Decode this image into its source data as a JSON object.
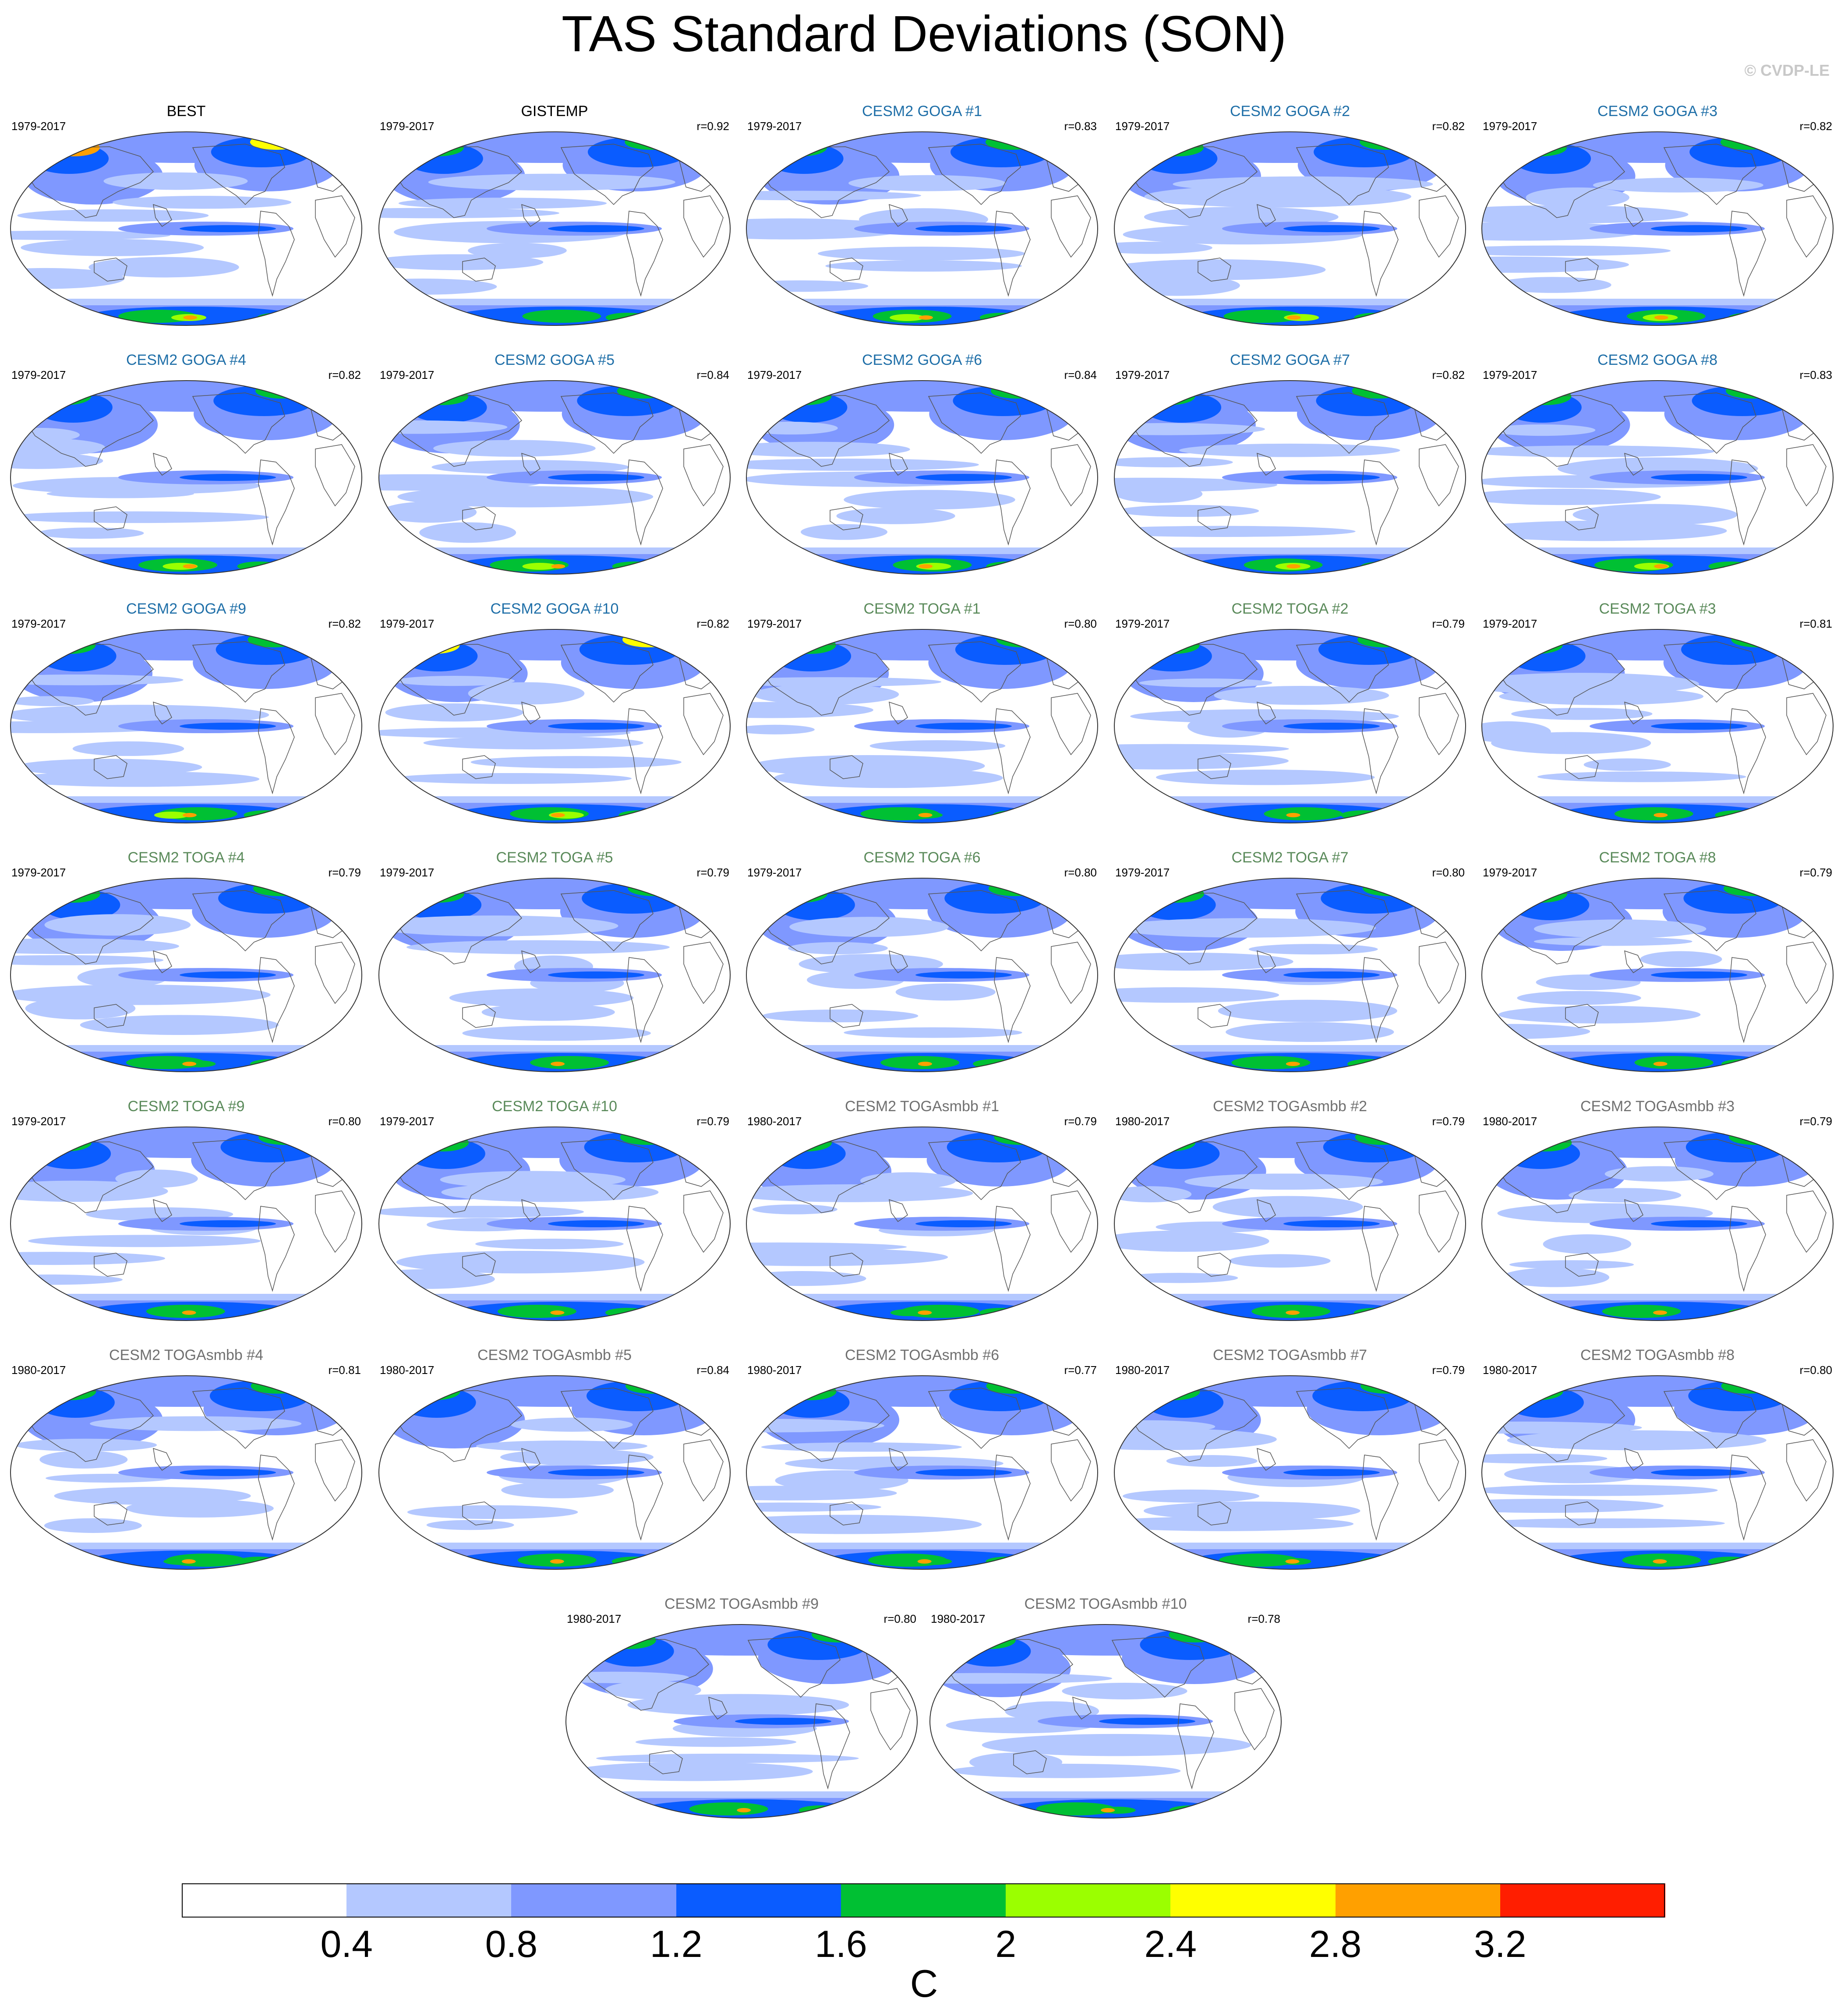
{
  "title": "TAS Standard Deviations (SON)",
  "copyright": "© CVDP-LE",
  "colors": {
    "goga_title": "#1f6fa8",
    "toga_title": "#5a8a5a",
    "togasmbb_title": "#707070",
    "obs_title": "#000000"
  },
  "chart_data": {
    "type": "heatmap",
    "projection": "robinson-like global map",
    "units": "C",
    "colorbar": {
      "levels": [
        "0.4",
        "0.8",
        "1.2",
        "1.6",
        "2",
        "2.4",
        "2.8",
        "3.2"
      ],
      "colors": [
        "#ffffff",
        "#b4c8ff",
        "#7f98ff",
        "#0a5cff",
        "#00c033",
        "#9bff00",
        "#ffff00",
        "#ffa000",
        "#ff1e00"
      ]
    },
    "panels": [
      {
        "name": "BEST",
        "period": "1979-2017",
        "r": "",
        "group": "obs"
      },
      {
        "name": "GISTEMP",
        "period": "1979-2017",
        "r": "r=0.92",
        "group": "obs"
      },
      {
        "name": "CESM2 GOGA #1",
        "period": "1979-2017",
        "r": "r=0.83",
        "group": "goga"
      },
      {
        "name": "CESM2 GOGA #2",
        "period": "1979-2017",
        "r": "r=0.82",
        "group": "goga"
      },
      {
        "name": "CESM2 GOGA #3",
        "period": "1979-2017",
        "r": "r=0.82",
        "group": "goga"
      },
      {
        "name": "CESM2 GOGA #4",
        "period": "1979-2017",
        "r": "r=0.82",
        "group": "goga"
      },
      {
        "name": "CESM2 GOGA #5",
        "period": "1979-2017",
        "r": "r=0.84",
        "group": "goga"
      },
      {
        "name": "CESM2 GOGA #6",
        "period": "1979-2017",
        "r": "r=0.84",
        "group": "goga"
      },
      {
        "name": "CESM2 GOGA #7",
        "period": "1979-2017",
        "r": "r=0.82",
        "group": "goga"
      },
      {
        "name": "CESM2 GOGA #8",
        "period": "1979-2017",
        "r": "r=0.83",
        "group": "goga"
      },
      {
        "name": "CESM2 GOGA #9",
        "period": "1979-2017",
        "r": "r=0.82",
        "group": "goga"
      },
      {
        "name": "CESM2 GOGA #10",
        "period": "1979-2017",
        "r": "r=0.82",
        "group": "goga"
      },
      {
        "name": "CESM2 TOGA #1",
        "period": "1979-2017",
        "r": "r=0.80",
        "group": "toga"
      },
      {
        "name": "CESM2 TOGA #2",
        "period": "1979-2017",
        "r": "r=0.79",
        "group": "toga"
      },
      {
        "name": "CESM2 TOGA #3",
        "period": "1979-2017",
        "r": "r=0.81",
        "group": "toga"
      },
      {
        "name": "CESM2 TOGA #4",
        "period": "1979-2017",
        "r": "r=0.79",
        "group": "toga"
      },
      {
        "name": "CESM2 TOGA #5",
        "period": "1979-2017",
        "r": "r=0.79",
        "group": "toga"
      },
      {
        "name": "CESM2 TOGA #6",
        "period": "1979-2017",
        "r": "r=0.80",
        "group": "toga"
      },
      {
        "name": "CESM2 TOGA #7",
        "period": "1979-2017",
        "r": "r=0.80",
        "group": "toga"
      },
      {
        "name": "CESM2 TOGA #8",
        "period": "1979-2017",
        "r": "r=0.79",
        "group": "toga"
      },
      {
        "name": "CESM2 TOGA #9",
        "period": "1979-2017",
        "r": "r=0.80",
        "group": "toga"
      },
      {
        "name": "CESM2 TOGA #10",
        "period": "1979-2017",
        "r": "r=0.79",
        "group": "toga"
      },
      {
        "name": "CESM2 TOGAsmbb #1",
        "period": "1980-2017",
        "r": "r=0.79",
        "group": "togasmbb"
      },
      {
        "name": "CESM2 TOGAsmbb #2",
        "period": "1980-2017",
        "r": "r=0.79",
        "group": "togasmbb"
      },
      {
        "name": "CESM2 TOGAsmbb #3",
        "period": "1980-2017",
        "r": "r=0.79",
        "group": "togasmbb"
      },
      {
        "name": "CESM2 TOGAsmbb #4",
        "period": "1980-2017",
        "r": "r=0.81",
        "group": "togasmbb"
      },
      {
        "name": "CESM2 TOGAsmbb #5",
        "period": "1980-2017",
        "r": "r=0.84",
        "group": "togasmbb"
      },
      {
        "name": "CESM2 TOGAsmbb #6",
        "period": "1980-2017",
        "r": "r=0.77",
        "group": "togasmbb"
      },
      {
        "name": "CESM2 TOGAsmbb #7",
        "period": "1980-2017",
        "r": "r=0.79",
        "group": "togasmbb"
      },
      {
        "name": "CESM2 TOGAsmbb #8",
        "period": "1980-2017",
        "r": "r=0.80",
        "group": "togasmbb"
      },
      {
        "name": "CESM2 TOGAsmbb #9",
        "period": "1980-2017",
        "r": "r=0.80",
        "group": "togasmbb"
      },
      {
        "name": "CESM2 TOGAsmbb #10",
        "period": "1980-2017",
        "r": "r=0.78",
        "group": "togasmbb"
      }
    ]
  }
}
